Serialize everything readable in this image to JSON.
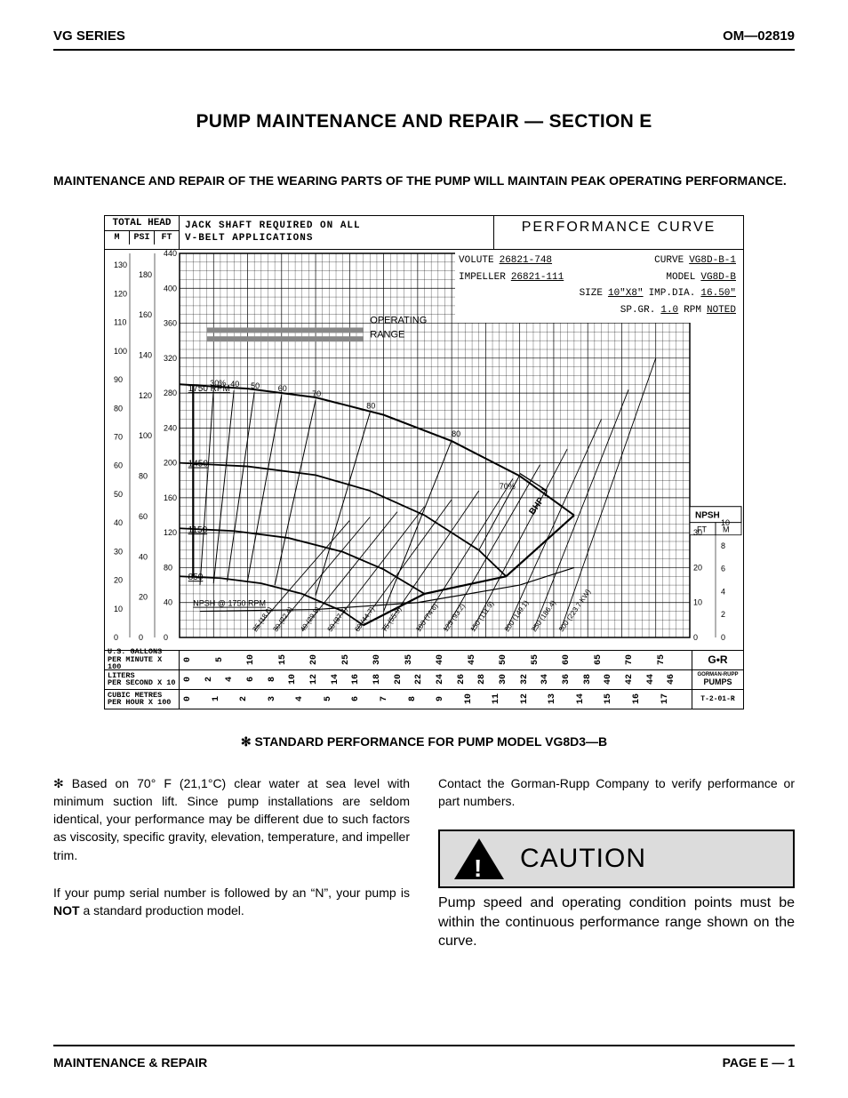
{
  "header": {
    "series": "VG SERIES",
    "doc_no": "OM—02819"
  },
  "section_title": "PUMP MAINTENANCE AND REPAIR — SECTION E",
  "intro": "MAINTENANCE AND REPAIR OF THE WEARING PARTS OF THE PUMP WILL MAINTAIN PEAK OPERATING PERFORMANCE.",
  "chart": {
    "total_head_label": "TOTAL HEAD",
    "head_units": [
      "M",
      "PSI",
      "FT"
    ],
    "jack_note": "JACK SHAFT REQUIRED ON ALL\nV-BELT APPLICATIONS",
    "perf_title": "PERFORMANCE  CURVE",
    "meta": {
      "volute_lbl": "VOLUTE",
      "volute": "26821-748",
      "curve_lbl": "CURVE",
      "curve": "VG8D-B-1",
      "impeller_lbl": "IMPELLER",
      "impeller": "26821-111",
      "model_lbl": "MODEL",
      "model": "VG8D-B",
      "size_lbl": "SIZE",
      "size": "10\"X8\"",
      "impdia_lbl": "IMP.DIA.",
      "impdia": "16.50\"",
      "spgr_lbl": "SP.GR.",
      "spgr": "1.0",
      "rpm_lbl": "RPM",
      "rpm": "NOTED"
    },
    "y_axis_M": [
      0,
      10,
      20,
      30,
      40,
      50,
      60,
      70,
      80,
      90,
      100,
      110,
      120,
      130
    ],
    "y_axis_PSI": [
      0,
      20,
      40,
      60,
      80,
      100,
      120,
      140,
      160,
      180
    ],
    "y_axis_FT": [
      0,
      40,
      80,
      120,
      160,
      200,
      240,
      280,
      320,
      360,
      400,
      440
    ],
    "y_right_npsh_label": "NPSH",
    "y_right_units": [
      "FT",
      "M"
    ],
    "y_right_FT": [
      0,
      10,
      20,
      30
    ],
    "y_right_M": [
      0,
      2,
      4,
      6,
      8,
      10
    ],
    "operating_range_label": "OPERATING RANGE",
    "speed_labels": [
      "1750 RPM",
      "1450",
      "1150",
      "850"
    ],
    "efficiency_labels": [
      "30%",
      "40",
      "50",
      "60",
      "70",
      "80",
      "80",
      "70%"
    ],
    "bhp_labels": [
      "25 (18.6)",
      "30 (22.4)",
      "40 (29.8)",
      "50 (37.3)",
      "60 (44.7)",
      "75 (55.9)",
      "100 (74.6)",
      "125 (93.2)",
      "150 (111.9)",
      "200 (149.1)",
      "250 (186.4)",
      "300 (223.7 KW)"
    ],
    "npsh_curve_label": "NPSH @ 1750 RPM",
    "x_scales": [
      {
        "label": "U.S. GALLONS\nPER MINUTE X 100",
        "ticks": [
          0,
          5,
          10,
          15,
          20,
          25,
          30,
          35,
          40,
          45,
          50,
          55,
          60,
          65,
          70,
          75
        ]
      },
      {
        "label": "LITERS\nPER SECOND X 10",
        "ticks": [
          0,
          2,
          4,
          6,
          8,
          10,
          12,
          14,
          16,
          18,
          20,
          22,
          24,
          26,
          28,
          30,
          32,
          34,
          36,
          38,
          40,
          42,
          44,
          46
        ]
      },
      {
        "label": "CUBIC METRES\nPER HOUR X 100",
        "ticks": [
          0,
          1,
          2,
          3,
          4,
          5,
          6,
          7,
          8,
          9,
          10,
          11,
          12,
          13,
          14,
          15,
          16,
          17
        ]
      }
    ],
    "logo_text": "G•R\nGORMAN-RUPP\nPUMPS",
    "drawing_ref": "T-2-01-R",
    "colors": {
      "grid": "#000000",
      "curves": "#000000",
      "shade": "#aaaaaa"
    }
  },
  "fig_caption": "STANDARD PERFORMANCE FOR PUMP MODEL VG8D3—B",
  "body": {
    "p1_prefix": "✻ Based on 70° F (21,1°C) clear water at sea level with minimum suction lift. Since pump installations are seldom identical, your performance may be different due to such factors as viscosity, specific gravity, elevation, temperature, and impeller trim.",
    "p2a": "If your pump serial number is followed by an “N”, your pump is ",
    "p2b": "NOT",
    "p2c": " a standard production model.",
    "p3": "Contact the Gorman-Rupp Company to verify performance or part numbers.",
    "caution_label": "CAUTION",
    "caution_text": "Pump speed and operating condition points must be within the continuous performance range shown on the curve."
  },
  "footer": {
    "left": "MAINTENANCE & REPAIR",
    "right": "PAGE E — 1"
  }
}
